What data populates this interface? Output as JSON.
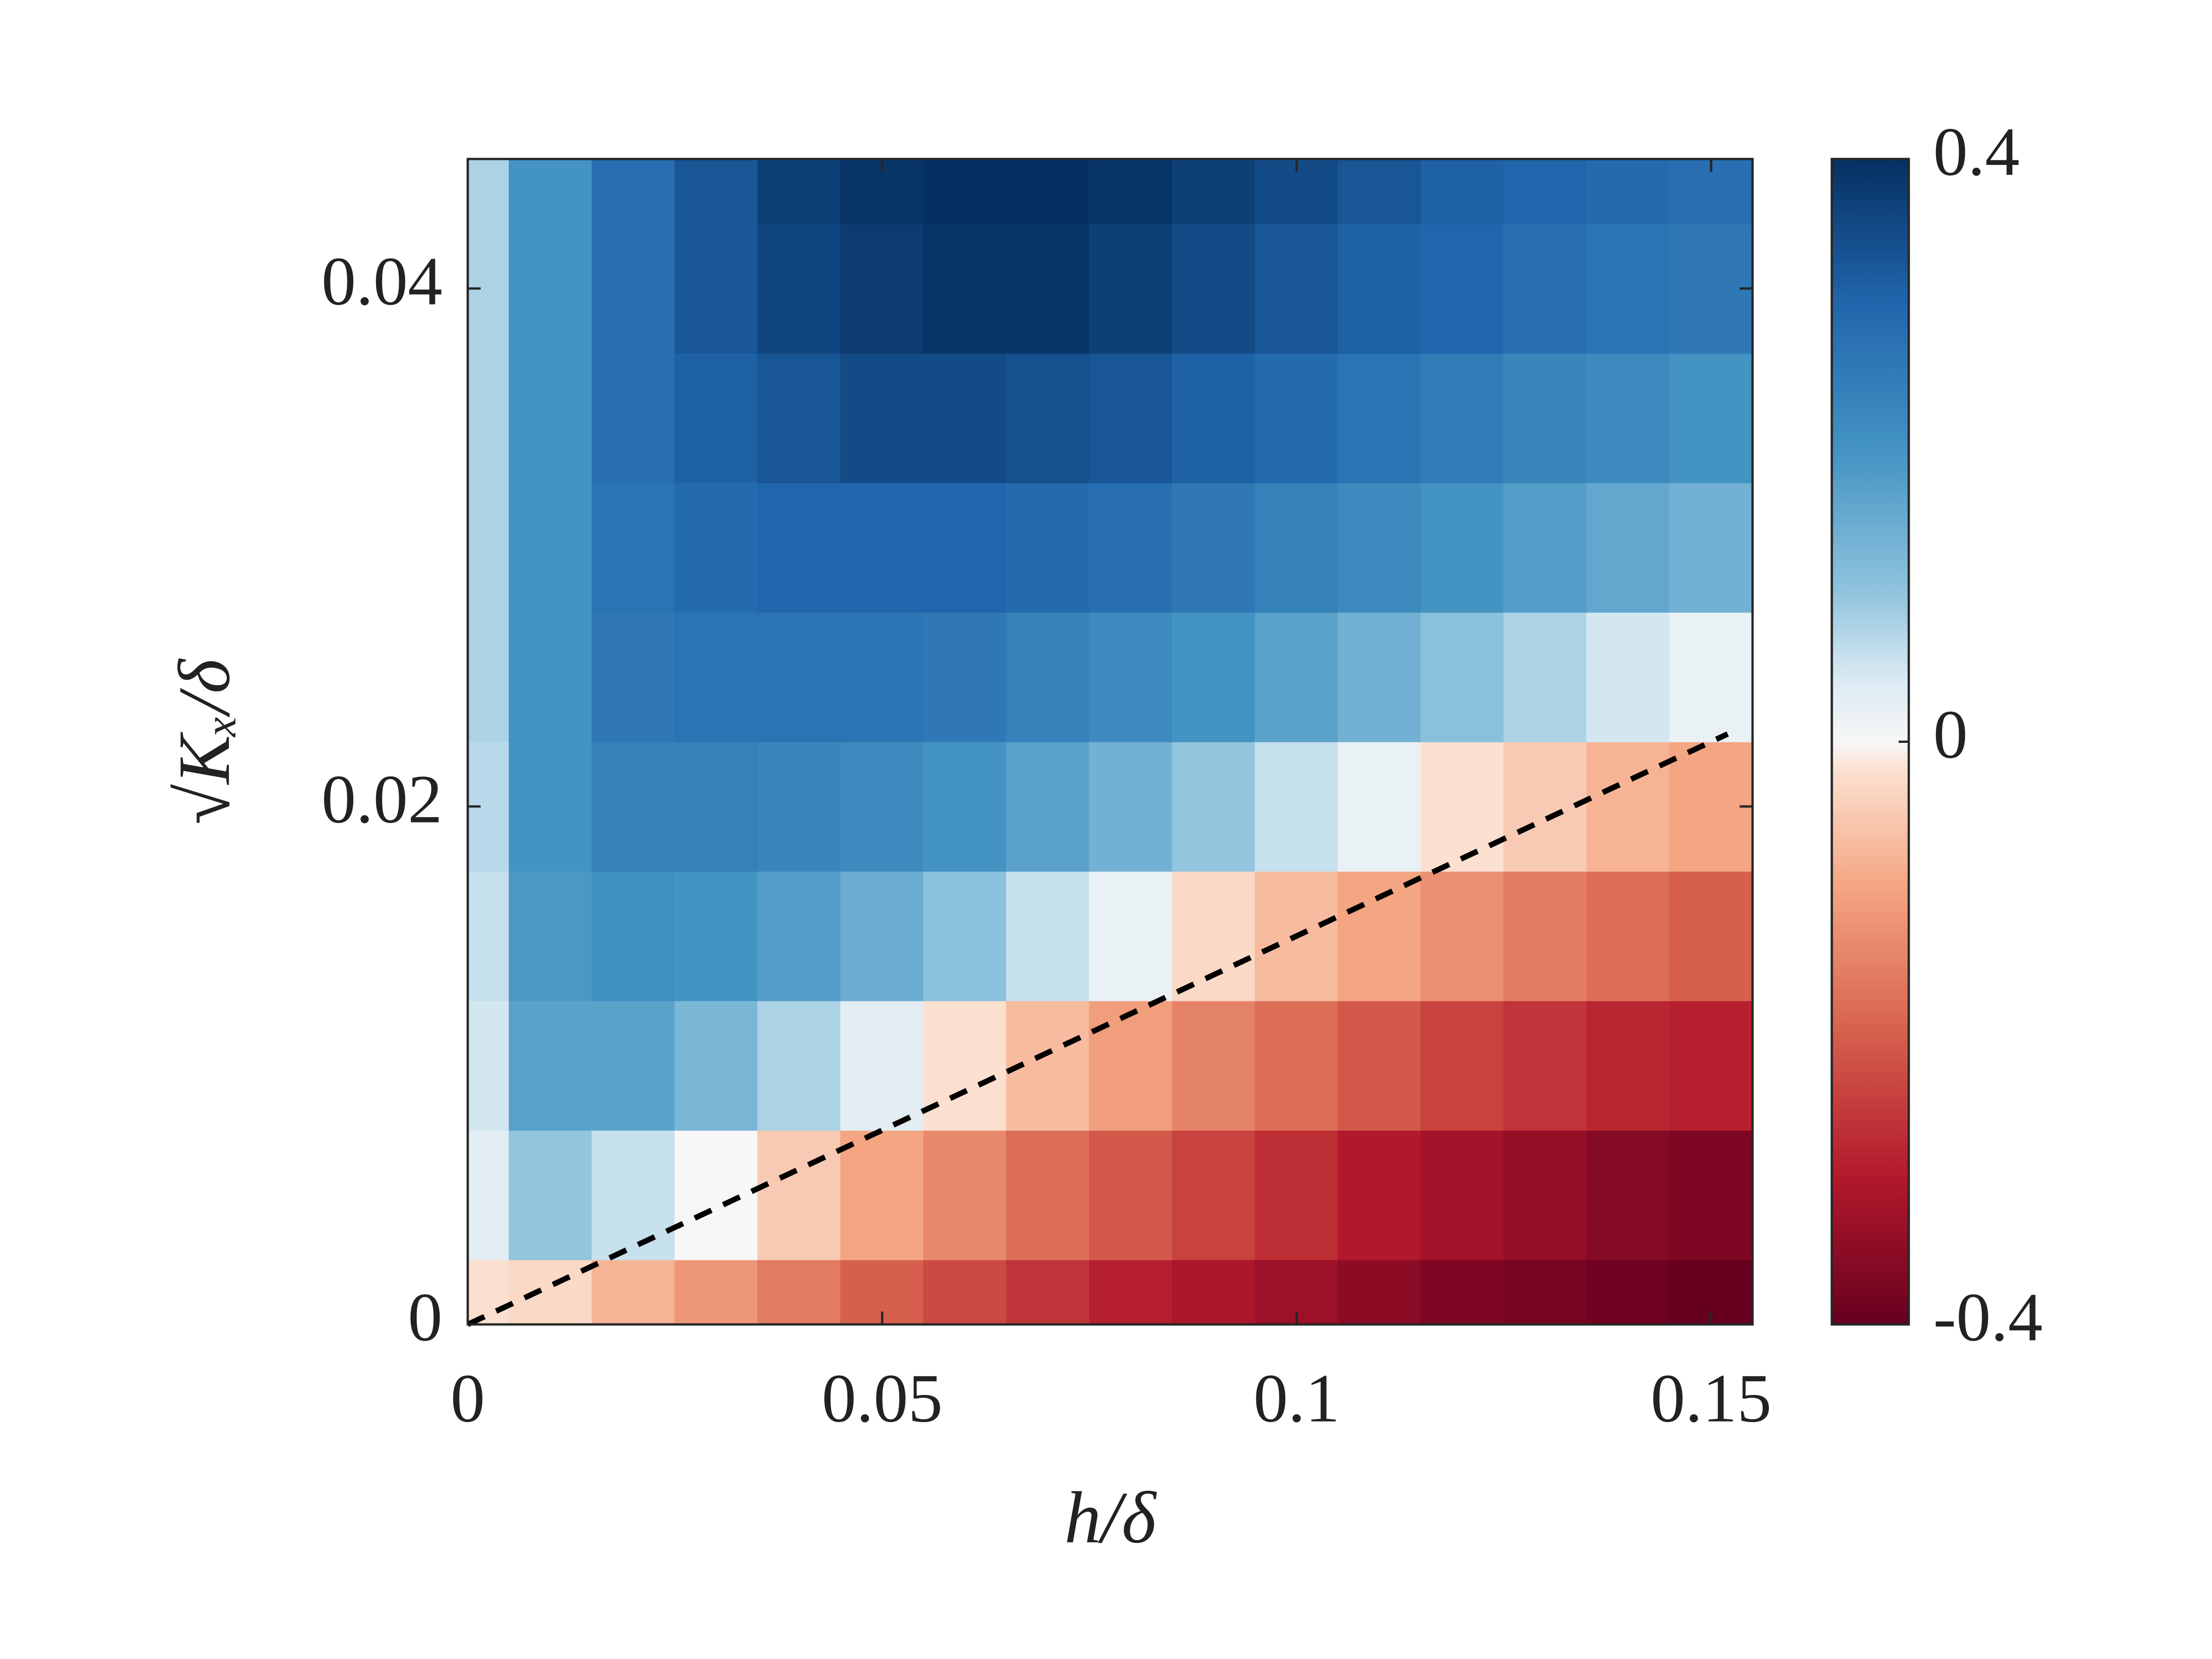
{
  "chart_data": {
    "type": "heatmap",
    "xlabel": "h/δ",
    "ylabel": "√Kₓ/δ",
    "x": [
      0,
      0.01,
      0.02,
      0.03,
      0.04,
      0.05,
      0.06,
      0.07,
      0.08,
      0.09,
      0.1,
      0.11,
      0.12,
      0.13,
      0.14,
      0.15
    ],
    "y": [
      0,
      0.005,
      0.01,
      0.015,
      0.02,
      0.025,
      0.03,
      0.035,
      0.04,
      0.045
    ],
    "z": [
      [
        -0.02,
        -0.03,
        -0.08,
        -0.12,
        -0.16,
        -0.2,
        -0.23,
        -0.26,
        -0.29,
        -0.31,
        -0.33,
        -0.35,
        -0.37,
        -0.38,
        -0.39,
        -0.4
      ],
      [
        0.03,
        0.1,
        0.06,
        0.0,
        -0.05,
        -0.1,
        -0.14,
        -0.18,
        -0.21,
        -0.24,
        -0.27,
        -0.3,
        -0.32,
        -0.34,
        -0.36,
        -0.37
      ],
      [
        0.05,
        0.17,
        0.17,
        0.13,
        0.08,
        0.03,
        -0.02,
        -0.07,
        -0.11,
        -0.15,
        -0.18,
        -0.21,
        -0.24,
        -0.26,
        -0.28,
        -0.29
      ],
      [
        0.06,
        0.19,
        0.21,
        0.2,
        0.18,
        0.15,
        0.11,
        0.06,
        0.02,
        -0.03,
        -0.07,
        -0.1,
        -0.13,
        -0.16,
        -0.18,
        -0.2
      ],
      [
        0.07,
        0.2,
        0.24,
        0.24,
        0.23,
        0.22,
        0.2,
        0.17,
        0.14,
        0.1,
        0.06,
        0.02,
        -0.02,
        -0.05,
        -0.08,
        -0.1
      ],
      [
        0.08,
        0.2,
        0.26,
        0.27,
        0.27,
        0.27,
        0.26,
        0.24,
        0.22,
        0.2,
        0.17,
        0.14,
        0.11,
        0.08,
        0.05,
        0.02
      ],
      [
        0.08,
        0.2,
        0.27,
        0.29,
        0.3,
        0.3,
        0.3,
        0.29,
        0.28,
        0.26,
        0.24,
        0.22,
        0.2,
        0.18,
        0.16,
        0.14
      ],
      [
        0.08,
        0.2,
        0.28,
        0.31,
        0.33,
        0.35,
        0.35,
        0.34,
        0.33,
        0.31,
        0.29,
        0.27,
        0.25,
        0.23,
        0.22,
        0.2
      ],
      [
        0.08,
        0.2,
        0.28,
        0.33,
        0.36,
        0.38,
        0.39,
        0.39,
        0.37,
        0.35,
        0.33,
        0.31,
        0.3,
        0.28,
        0.27,
        0.26
      ],
      [
        0.08,
        0.2,
        0.28,
        0.33,
        0.37,
        0.39,
        0.4,
        0.4,
        0.39,
        0.37,
        0.35,
        0.33,
        0.31,
        0.3,
        0.29,
        0.28
      ]
    ],
    "series": [
      {
        "x": [
          0,
          0.152
        ],
        "values": [
          0,
          0.0228
        ],
        "color": "#000000",
        "style": "dashed"
      }
    ],
    "xlim": [
      0,
      0.155
    ],
    "ylim": [
      0,
      0.045
    ],
    "xticks": [
      0,
      0.05,
      0.1,
      0.15
    ],
    "yticks": [
      0,
      0.02,
      0.04
    ],
    "colormap": "RdBu",
    "clim": [
      -0.4,
      0.4
    ],
    "cticks": [
      -0.4,
      0,
      0.4
    ]
  }
}
